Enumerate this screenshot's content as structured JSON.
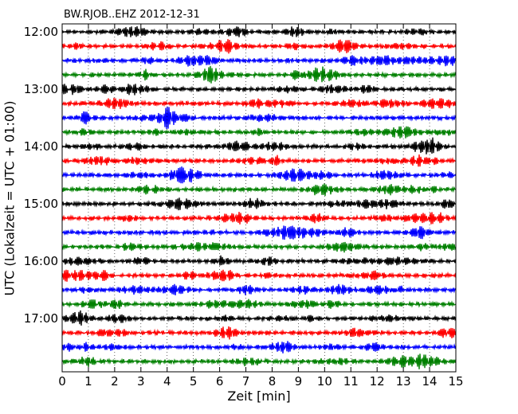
{
  "chart_data": {
    "type": "line",
    "title": "BW.RJOB..EHZ 2012-12-31",
    "xlabel": "Zeit  [min]",
    "ylabel": "UTC (Lokalzeit = UTC + 01:00)",
    "xlim": [
      0,
      15
    ],
    "x_ticks": [
      0,
      1,
      2,
      3,
      4,
      5,
      6,
      7,
      8,
      9,
      10,
      11,
      12,
      13,
      14,
      15
    ],
    "y_tick_labels": [
      "12:00",
      "13:00",
      "14:00",
      "15:00",
      "16:00",
      "17:00"
    ],
    "rows_per_hour": 4,
    "minutes_per_row": 15,
    "row_count": 24,
    "grid": true,
    "line_colors": [
      "#000000",
      "#ff0000",
      "#0000ff",
      "#008000"
    ]
  }
}
